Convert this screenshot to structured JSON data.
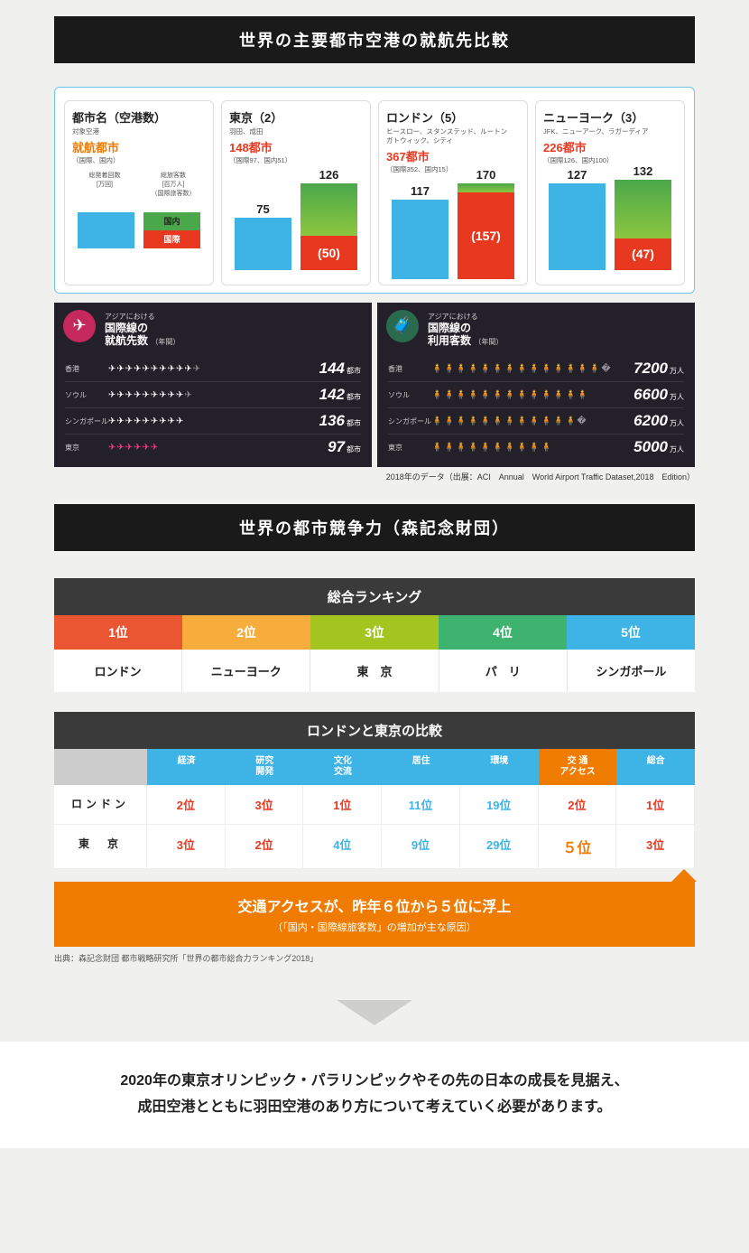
{
  "colors": {
    "blue": "#3eb3e6",
    "green": "#4aa84a",
    "red": "#e83820",
    "orange_accent": "#ef7b00",
    "dark": "#1a1a1a",
    "pink": "#d6336c",
    "yellow": "#d9d93a",
    "grey_bg": "#f0f0ee",
    "rank1": "#ea5532",
    "rank2": "#f6ad3c",
    "rank3": "#a4c520",
    "rank4": "#3eb370",
    "rank5": "#3eb3e6",
    "cmp_highlight": "#ef7b00"
  },
  "section1_title": "世界の主要都市空港の就航先比較",
  "legend_card": {
    "title": "都市名（空港数）",
    "sub": "対象空港",
    "dest": "就航都市",
    "dest_color": "#ef7b00",
    "breakdown": "（国際、国内）",
    "left_label_1": "総発着回数",
    "left_label_2": "[万回]",
    "right_label_1": "総旅客数",
    "right_label_2": "[百万人]",
    "right_label_3": "（国際旅客数）",
    "bar_label_top": "国内",
    "bar_label_bot": "国際"
  },
  "airports": [
    {
      "title": "東京（2）",
      "sub": "羽田、成田",
      "dest": "148都市",
      "breakdown": "（国際97、国内51）",
      "dep_val": 75,
      "dep_h": 58,
      "pax_val": 126,
      "pax_h": 96,
      "intl_val": "(50)",
      "intl_h": 38
    },
    {
      "title": "ロンドン（5）",
      "sub": "ヒースロー、スタンステッド、ルートン\nガトウィック、シティ",
      "dest": "367都市",
      "breakdown": "（国際352、国内15）",
      "dep_val": 117,
      "dep_h": 88,
      "pax_val": 170,
      "pax_h": 106,
      "intl_val": "(157)",
      "intl_h": 96,
      "dom_h": 10
    },
    {
      "title": "ニューヨーク（3）",
      "sub": "JFK、ニューアーク、ラガーディア",
      "dest": "226都市",
      "breakdown": "（国際126、国内100）",
      "dep_val": 127,
      "dep_h": 96,
      "pax_val": 132,
      "pax_h": 100,
      "intl_val": "(47)",
      "intl_h": 35
    }
  ],
  "dark_panels": [
    {
      "badge_bg": "#c4285d",
      "badge_icon": "✈",
      "head": "アジアにおける",
      "title": "国際線の\n就航先数",
      "suffix": "（年間）",
      "unit": "都市",
      "icon_glyph": "✈",
      "rows": [
        {
          "city": "香港",
          "count": 10,
          "half": true,
          "val": "144",
          "color": "#fff"
        },
        {
          "city": "ソウル",
          "count": 9,
          "half": true,
          "val": "142",
          "color": "#fff"
        },
        {
          "city": "シンガポール",
          "count": 9,
          "half": false,
          "val": "136",
          "color": "#fff"
        },
        {
          "city": "東京",
          "count": 6,
          "half": false,
          "val": "97",
          "color": "#ff3d8c"
        }
      ]
    },
    {
      "badge_bg": "#2a6b4f",
      "badge_icon": "🧳",
      "head": "アジアにおける",
      "title": "国際線の\n利用客数",
      "suffix": "（年間）",
      "unit": "万人",
      "icon_glyph": "🧍",
      "rows": [
        {
          "city": "香港",
          "count": 14,
          "half": true,
          "val": "7200",
          "color": "#fff"
        },
        {
          "city": "ソウル",
          "count": 13,
          "half": false,
          "val": "6600",
          "color": "#fff"
        },
        {
          "city": "シンガポール",
          "count": 12,
          "half": true,
          "val": "6200",
          "color": "#fff"
        },
        {
          "city": "東京",
          "count": 10,
          "half": false,
          "val": "5000",
          "color": "#d9d93a"
        }
      ]
    }
  ],
  "source1": "2018年のデータ（出展：ACI　Annual　World Airport Traffic Dataset,2018　Edition）",
  "section2_title": "世界の都市競争力（森記念財団）",
  "ranking": {
    "head": "総合ランキング",
    "cells": [
      {
        "label": "1位",
        "bg": "#ea5532"
      },
      {
        "label": "2位",
        "bg": "#f6ad3c"
      },
      {
        "label": "3位",
        "bg": "#a4c520"
      },
      {
        "label": "4位",
        "bg": "#3eb370"
      },
      {
        "label": "5位",
        "bg": "#3eb3e6"
      }
    ],
    "names": [
      "ロンドン",
      "ニューヨーク",
      "東　京",
      "パ　リ",
      "シンガポール"
    ]
  },
  "comparison": {
    "head": "ロンドンと東京の比較",
    "cols": [
      {
        "label": "経済",
        "bg": "#3eb3e6"
      },
      {
        "label": "研究\n開発",
        "bg": "#3eb3e6"
      },
      {
        "label": "文化\n交流",
        "bg": "#3eb3e6"
      },
      {
        "label": "居住",
        "bg": "#3eb3e6"
      },
      {
        "label": "環境",
        "bg": "#3eb3e6"
      },
      {
        "label": "交 通\nアクセス",
        "bg": "#ef7b00"
      },
      {
        "label": "総合",
        "bg": "#3eb3e6"
      }
    ],
    "rows": [
      {
        "name": "ロンドン",
        "vals": [
          {
            "t": "2位",
            "c": "#e83820"
          },
          {
            "t": "3位",
            "c": "#e83820"
          },
          {
            "t": "1位",
            "c": "#e83820"
          },
          {
            "t": "11位",
            "c": "#3eb3e6"
          },
          {
            "t": "19位",
            "c": "#3eb3e6"
          },
          {
            "t": "2位",
            "c": "#e83820"
          },
          {
            "t": "1位",
            "c": "#e83820"
          }
        ]
      },
      {
        "name": "東　京",
        "vals": [
          {
            "t": "3位",
            "c": "#e83820"
          },
          {
            "t": "2位",
            "c": "#e83820"
          },
          {
            "t": "4位",
            "c": "#3eb3e6"
          },
          {
            "t": "9位",
            "c": "#3eb3e6"
          },
          {
            "t": "29位",
            "c": "#3eb3e6"
          },
          {
            "t": "５位",
            "c": "#ef7b00",
            "big": true
          },
          {
            "t": "3位",
            "c": "#e83820"
          }
        ]
      }
    ]
  },
  "callout": {
    "bg": "#ef7b00",
    "big": "交通アクセスが、昨年６位から５位に浮上",
    "small": "（「国内・国際線旅客数」の増加が主な原因）"
  },
  "source2": "出典：森記念財団 都市戦略研究所「世界の都市総合力ランキング2018」",
  "bottom_tri_color": "#cfcfcc",
  "bottom_text_1": "2020年の東京オリンピック・パラリンピックやその先の日本の成長を見据え、",
  "bottom_text_2": "成田空港とともに羽田空港のあり方について考えていく必要があります。"
}
